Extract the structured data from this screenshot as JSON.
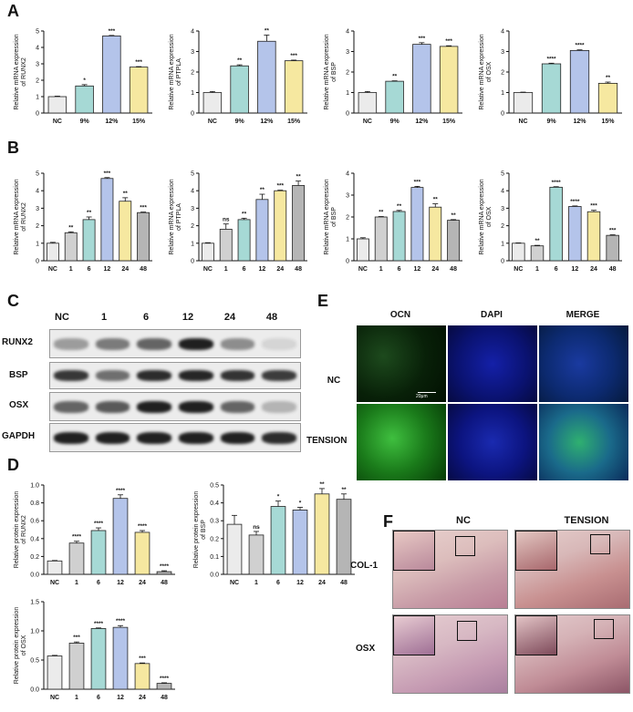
{
  "panel_letters": {
    "A": "A",
    "B": "B",
    "C": "C",
    "D": "D",
    "E": "E",
    "F": "F"
  },
  "colors": {
    "nc": "#ebebeb",
    "c1": "#d0d0d0",
    "c2": "#a6d9d5",
    "c3": "#b4c4ea",
    "c4": "#f6e8a0",
    "c5": "#b5b5b5",
    "bar_outline": "#222222"
  },
  "blot": {
    "lanes": [
      "NC",
      "1",
      "6",
      "12",
      "24",
      "48"
    ],
    "rows": [
      "RUNX2",
      "BSP",
      "OSX",
      "GAPDH"
    ],
    "intensity": [
      [
        0.35,
        0.5,
        0.6,
        0.9,
        0.42,
        0.1
      ],
      [
        0.8,
        0.55,
        0.85,
        0.88,
        0.82,
        0.78
      ],
      [
        0.6,
        0.65,
        0.9,
        0.9,
        0.6,
        0.25
      ],
      [
        0.9,
        0.9,
        0.9,
        0.9,
        0.9,
        0.85
      ]
    ]
  },
  "if_panel": {
    "columns": [
      "OCN",
      "DAPI",
      "MERGE"
    ],
    "rows": [
      "NC",
      "TENSION"
    ],
    "scale_bar": "20μm"
  },
  "histo": {
    "columns": [
      "NC",
      "TENSION"
    ],
    "rows": [
      "COL-1",
      "OSX"
    ]
  },
  "chart_data": [
    {
      "id": "A1",
      "type": "bar",
      "ylabel": "Relative mRNA expression of RUNX2",
      "categories": [
        "NC",
        "9%",
        "12%",
        "15%"
      ],
      "values": [
        1.0,
        1.65,
        4.7,
        2.8
      ],
      "errors": [
        0.03,
        0.08,
        0.03,
        0.03
      ],
      "sig": [
        "",
        "*",
        "***",
        "***"
      ],
      "ylim": [
        0,
        5
      ],
      "yticks": [
        0,
        1,
        2,
        3,
        4,
        5
      ]
    },
    {
      "id": "A2",
      "type": "bar",
      "ylabel": "Relative mRNA expression of PTPLA",
      "categories": [
        "NC",
        "9%",
        "12%",
        "15%"
      ],
      "values": [
        1.0,
        2.3,
        3.5,
        2.55
      ],
      "errors": [
        0.05,
        0.05,
        0.3,
        0.03
      ],
      "sig": [
        "",
        "**",
        "**",
        "***"
      ],
      "ylim": [
        0,
        4
      ],
      "yticks": [
        0,
        1,
        2,
        3,
        4
      ]
    },
    {
      "id": "A3",
      "type": "bar",
      "ylabel": "Relative mRNA expression of BSP",
      "categories": [
        "NC",
        "9%",
        "12%",
        "15%"
      ],
      "values": [
        1.0,
        1.55,
        3.35,
        3.25
      ],
      "errors": [
        0.05,
        0.02,
        0.08,
        0.03
      ],
      "sig": [
        "",
        "**",
        "***",
        "***"
      ],
      "ylim": [
        0,
        4
      ],
      "yticks": [
        0,
        1,
        2,
        3,
        4
      ]
    },
    {
      "id": "A4",
      "type": "bar",
      "ylabel": "Relative mRNA expression of OSX",
      "categories": [
        "NC",
        "9%",
        "12%",
        "15%"
      ],
      "values": [
        1.0,
        2.4,
        3.05,
        1.45
      ],
      "errors": [
        0.02,
        0.03,
        0.03,
        0.06
      ],
      "sig": [
        "",
        "****",
        "****",
        "**"
      ],
      "ylim": [
        0,
        4
      ],
      "yticks": [
        0,
        1,
        2,
        3,
        4
      ]
    },
    {
      "id": "B1",
      "type": "bar",
      "ylabel": "Relative mRNA expression of RUNX2",
      "categories": [
        "NC",
        "1",
        "6",
        "12",
        "24",
        "48"
      ],
      "values": [
        1.0,
        1.6,
        2.35,
        4.7,
        3.4,
        2.75
      ],
      "errors": [
        0.05,
        0.05,
        0.15,
        0.05,
        0.2,
        0.03
      ],
      "sig": [
        "",
        "**",
        "**",
        "***",
        "**",
        "***"
      ],
      "ylim": [
        0,
        5
      ],
      "yticks": [
        0,
        1,
        2,
        3,
        4,
        5
      ]
    },
    {
      "id": "B2",
      "type": "bar",
      "ylabel": "Relative mRNA expression of PTPLA",
      "categories": [
        "NC",
        "1",
        "6",
        "12",
        "24",
        "48"
      ],
      "values": [
        1.0,
        1.8,
        2.35,
        3.5,
        4.0,
        4.3
      ],
      "errors": [
        0.03,
        0.3,
        0.08,
        0.3,
        0.03,
        0.25
      ],
      "sig": [
        "",
        "ns",
        "**",
        "**",
        "***",
        "**"
      ],
      "ylim": [
        0,
        5
      ],
      "yticks": [
        0,
        1,
        2,
        3,
        4,
        5
      ]
    },
    {
      "id": "B3",
      "type": "bar",
      "ylabel": "Relative mRNA expression of BSP",
      "categories": [
        "NC",
        "1",
        "6",
        "12",
        "24",
        "48"
      ],
      "values": [
        1.0,
        2.0,
        2.25,
        3.35,
        2.45,
        1.85
      ],
      "errors": [
        0.05,
        0.02,
        0.05,
        0.05,
        0.15,
        0.03
      ],
      "sig": [
        "",
        "**",
        "**",
        "***",
        "**",
        "**"
      ],
      "ylim": [
        0,
        4
      ],
      "yticks": [
        0,
        1,
        2,
        3,
        4
      ]
    },
    {
      "id": "B4",
      "type": "bar",
      "ylabel": "Relative mRNA expression of OSX",
      "categories": [
        "NC",
        "1",
        "6",
        "12",
        "24",
        "48"
      ],
      "values": [
        1.0,
        0.85,
        4.2,
        3.1,
        2.8,
        1.45
      ],
      "errors": [
        0.02,
        0.03,
        0.03,
        0.03,
        0.08,
        0.03
      ],
      "sig": [
        "",
        "**",
        "****",
        "****",
        "***",
        "***"
      ],
      "ylim": [
        0,
        5
      ],
      "yticks": [
        0,
        1,
        2,
        3,
        4,
        5
      ]
    },
    {
      "id": "D1",
      "type": "bar",
      "ylabel": "Relative protein expression of RUNX2",
      "categories": [
        "NC",
        "1",
        "6",
        "12",
        "24",
        "48"
      ],
      "values": [
        0.15,
        0.35,
        0.49,
        0.85,
        0.47,
        0.03
      ],
      "errors": [
        0.005,
        0.02,
        0.03,
        0.04,
        0.02,
        0.01
      ],
      "sig": [
        "",
        "****",
        "****",
        "****",
        "****",
        "****"
      ],
      "ylim": [
        0,
        1.0
      ],
      "yticks": [
        "0.0",
        "0.2",
        "0.4",
        "0.6",
        "0.8",
        "1.0"
      ]
    },
    {
      "id": "D2",
      "type": "bar",
      "ylabel": "Relative protein expression of BSP",
      "categories": [
        "NC",
        "1",
        "6",
        "12",
        "24",
        "48"
      ],
      "values": [
        0.28,
        0.22,
        0.38,
        0.36,
        0.45,
        0.42
      ],
      "errors": [
        0.05,
        0.02,
        0.03,
        0.015,
        0.03,
        0.03
      ],
      "sig": [
        "",
        "ns",
        "*",
        "*",
        "**",
        "**"
      ],
      "ylim": [
        0,
        0.5
      ],
      "yticks": [
        "0.0",
        "0.1",
        "0.2",
        "0.3",
        "0.4",
        "0.5"
      ]
    },
    {
      "id": "D3",
      "type": "bar",
      "ylabel": "Relative protein expression of OSX",
      "categories": [
        "NC",
        "1",
        "6",
        "12",
        "24",
        "48"
      ],
      "values": [
        0.57,
        0.79,
        1.04,
        1.06,
        0.44,
        0.1
      ],
      "errors": [
        0.01,
        0.02,
        0.01,
        0.03,
        0.01,
        0.01
      ],
      "sig": [
        "",
        "***",
        "****",
        "****",
        "***",
        "****"
      ],
      "ylim": [
        0,
        1.5
      ],
      "yticks": [
        "0.0",
        "0.5",
        "1.0",
        "1.5"
      ]
    }
  ]
}
